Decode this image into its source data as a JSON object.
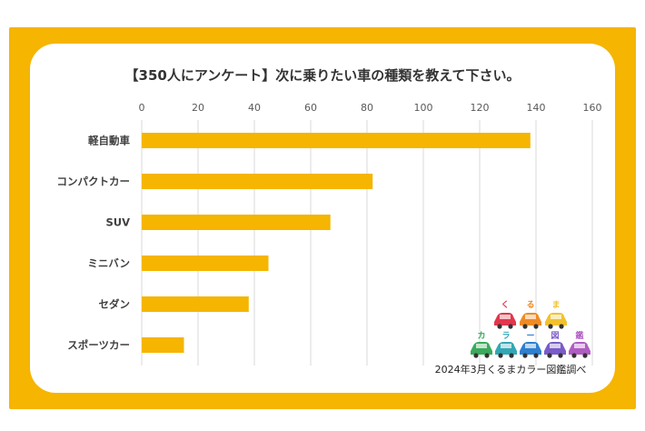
{
  "chart_data": {
    "type": "bar",
    "orientation": "horizontal",
    "title": "【350人にアンケート】次に乗りたい車の種類を教えて下さい。",
    "categories": [
      "軽自動車",
      "コンパクトカー",
      "SUV",
      "ミニバン",
      "セダン",
      "スポーツカー"
    ],
    "values": [
      138,
      82,
      67,
      45,
      38,
      15
    ],
    "xlim": [
      0,
      160
    ],
    "xticks": [
      0,
      20,
      40,
      60,
      80,
      100,
      120,
      140,
      160
    ],
    "xaxis_position": "top",
    "grid": true,
    "bar_color": "#F5B500"
  },
  "credit": {
    "text": "2024年3月くるまカラー図鑑調べ",
    "logo_row1": [
      "く",
      "る",
      "ま"
    ],
    "logo_row2": [
      "カ",
      "ラ",
      "ー",
      "図",
      "鑑"
    ],
    "logo_colors_row1": [
      "#E2364C",
      "#F08A24",
      "#F2C12E"
    ],
    "logo_colors_row2": [
      "#3BAA5C",
      "#33A7B5",
      "#2E7FD0",
      "#7A5BC9",
      "#B05CC4"
    ]
  },
  "frame_color": "#F5B500"
}
